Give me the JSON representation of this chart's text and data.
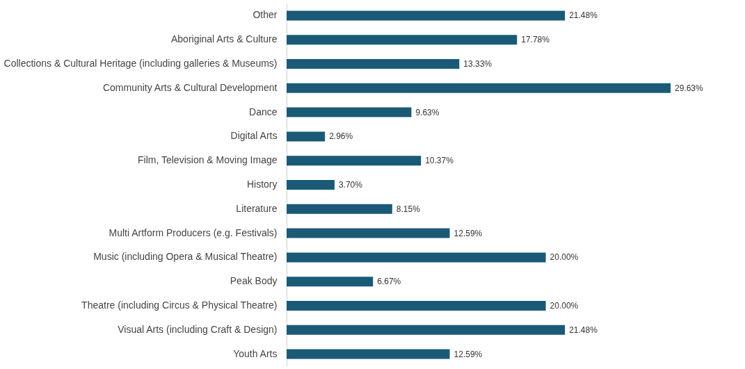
{
  "chart_data": {
    "type": "bar",
    "orientation": "horizontal",
    "categories": [
      "Other",
      "Aboriginal Arts & Culture",
      "Collections & Cultural Heritage (including galleries & Museums)",
      "Community Arts & Cultural Development",
      "Dance",
      "Digital Arts",
      "Film, Television & Moving Image",
      "History",
      "Literature",
      "Multi Artform Producers (e.g. Festivals)",
      "Music (including Opera & Musical Theatre)",
      "Peak Body",
      "Theatre (including Circus & Physical Theatre)",
      "Visual Arts (including Craft & Design)",
      "Youth Arts"
    ],
    "values": [
      21.48,
      17.78,
      13.33,
      29.63,
      9.63,
      2.96,
      10.37,
      3.7,
      8.15,
      12.59,
      20.0,
      6.67,
      20.0,
      21.48,
      12.59
    ],
    "value_labels": [
      "21.48%",
      "17.78%",
      "13.33%",
      "29.63%",
      "9.63%",
      "2.96%",
      "10.37%",
      "3.70%",
      "8.15%",
      "12.59%",
      "20.00%",
      "6.67%",
      "20.00%",
      "21.48%",
      "12.59%"
    ],
    "color": "#1b5a76"
  }
}
